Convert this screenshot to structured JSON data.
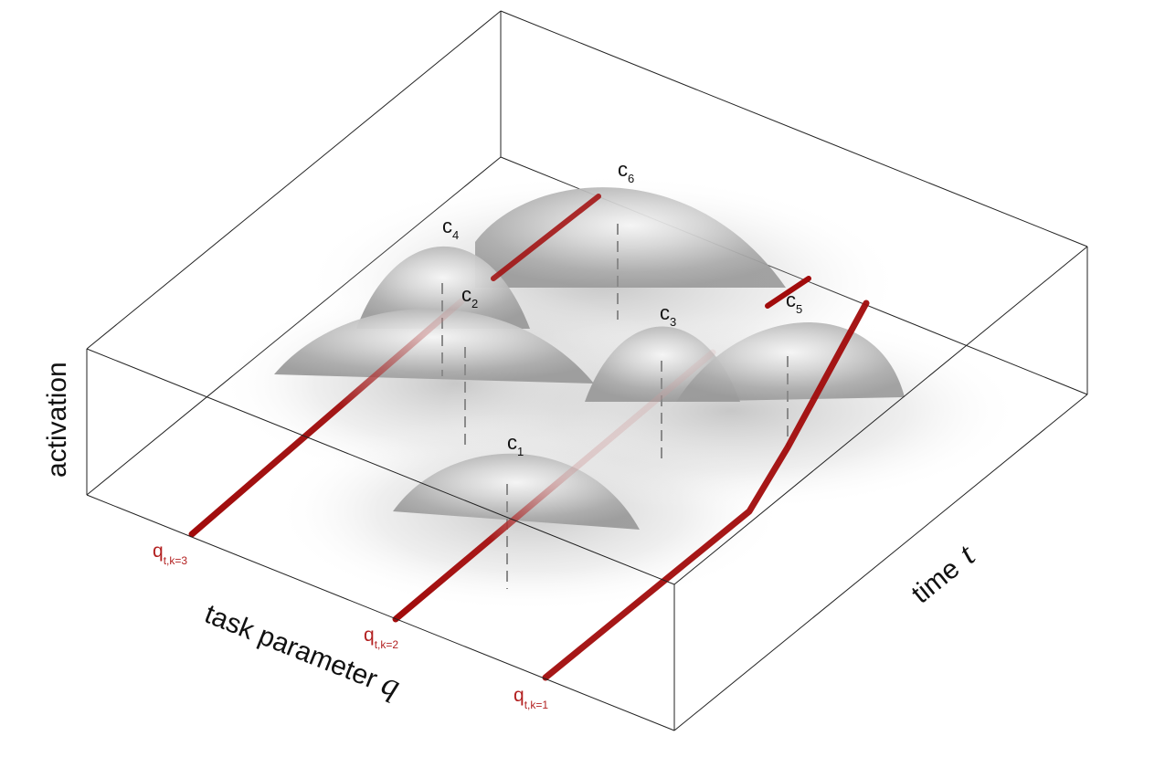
{
  "axes": {
    "activation": "activation",
    "time_text": "time",
    "time_var": "t",
    "task_text": "task parameter",
    "task_var": "q"
  },
  "peaks": [
    {
      "id": "c1",
      "base": "c",
      "sub": "1"
    },
    {
      "id": "c2",
      "base": "c",
      "sub": "2"
    },
    {
      "id": "c3",
      "base": "c",
      "sub": "3"
    },
    {
      "id": "c4",
      "base": "c",
      "sub": "4"
    },
    {
      "id": "c5",
      "base": "c",
      "sub": "5"
    },
    {
      "id": "c6",
      "base": "c",
      "sub": "6"
    }
  ],
  "trajectories": [
    {
      "id": "k3",
      "base": "q",
      "sub": "t,k=3"
    },
    {
      "id": "k2",
      "base": "q",
      "sub": "t,k=2"
    },
    {
      "id": "k1",
      "base": "q",
      "sub": "t,k=1"
    }
  ],
  "colors": {
    "trajectory": "#a10b0b",
    "label": "#b32121",
    "surface_light": "#f4f4f4",
    "surface_dark": "#a9a9a9",
    "box": "#222222"
  }
}
